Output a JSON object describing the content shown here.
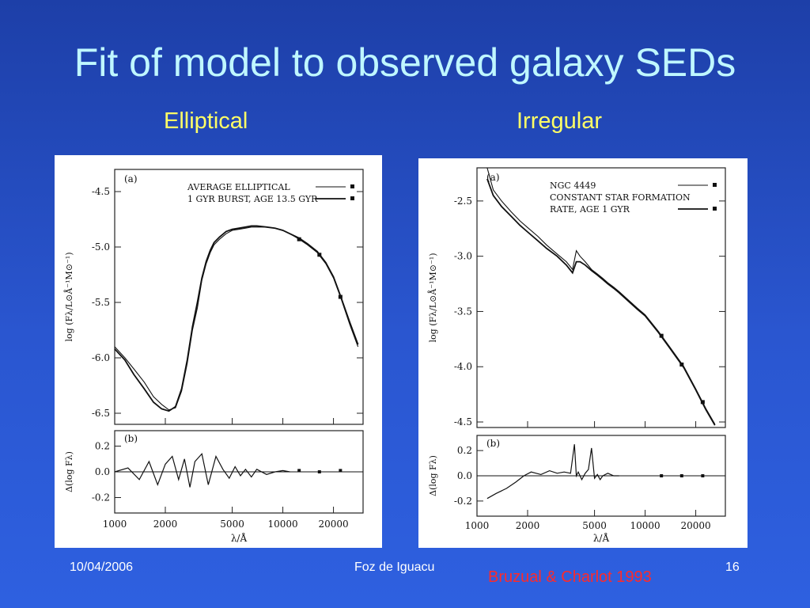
{
  "slide": {
    "title": "Fit of model to observed galaxy SEDs",
    "left_subtitle": "Elliptical",
    "right_subtitle": "Irregular",
    "footer_date": "10/04/2006",
    "footer_venue": "Foz de Iguacu",
    "page_number": "16",
    "citation": "Bruzual & Charlot 1993"
  },
  "colors": {
    "title": "#bff7ff",
    "subtitle": "#ffff66",
    "citation": "#ff2a2a",
    "footer": "#ffffff",
    "background": "#2a56d0"
  },
  "chart_data": [
    {
      "type": "line",
      "panel_label": "(a)",
      "xscale": "log",
      "xlim": [
        1000,
        30000
      ],
      "ylim": [
        -6.6,
        -4.3
      ],
      "xticks": [
        1000,
        2000,
        5000,
        10000,
        20000
      ],
      "xtick_labels": [
        "1000",
        "2000",
        "5000",
        "10000",
        "20000"
      ],
      "yticks": [
        -4.5,
        -5.0,
        -5.5,
        -6.0,
        -6.5
      ],
      "ytick_labels": [
        "-4.5",
        "-5.0",
        "-5.5",
        "-6.0",
        "-6.5"
      ],
      "ylabel": "log (Fλ/L⊙Å⁻¹M⊙⁻¹)",
      "xlabel": "λ/Å",
      "legend": [
        "AVERAGE ELLIPTICAL",
        "1 GYR BURST, AGE 13.5 GYR"
      ],
      "legend_position": "top-right",
      "series": [
        {
          "name": "AVERAGE ELLIPTICAL",
          "x": [
            1000,
            1150,
            1300,
            1500,
            1700,
            1900,
            2100,
            2300,
            2500,
            2700,
            2900,
            3100,
            3300,
            3500,
            3700,
            3900,
            4200,
            4600,
            5000,
            5500,
            6000,
            6500,
            7000,
            8000,
            9000,
            10000,
            11000,
            12500,
            14000,
            16000,
            18000,
            20000,
            22000,
            25000,
            28000
          ],
          "y": [
            -5.9,
            -6.0,
            -6.1,
            -6.22,
            -6.35,
            -6.42,
            -6.47,
            -6.45,
            -6.3,
            -6.05,
            -5.75,
            -5.55,
            -5.3,
            -5.15,
            -5.05,
            -4.98,
            -4.93,
            -4.88,
            -4.85,
            -4.84,
            -4.83,
            -4.82,
            -4.82,
            -4.82,
            -4.83,
            -4.85,
            -4.88,
            -4.93,
            -4.98,
            -5.05,
            -5.15,
            -5.28,
            -5.45,
            -5.7,
            -5.9
          ]
        },
        {
          "name": "1 GYR BURST, AGE 13.5 GYR",
          "x": [
            1000,
            1150,
            1300,
            1500,
            1700,
            1900,
            2100,
            2300,
            2500,
            2700,
            2900,
            3100,
            3300,
            3500,
            3700,
            3900,
            4200,
            4600,
            5000,
            5500,
            6000,
            6500,
            7000,
            8000,
            9000,
            10000,
            11000,
            12500,
            14000,
            16000,
            18000,
            20000,
            22000,
            25000,
            28000
          ],
          "y": [
            -5.92,
            -6.02,
            -6.15,
            -6.28,
            -6.4,
            -6.46,
            -6.48,
            -6.44,
            -6.28,
            -6.02,
            -5.72,
            -5.5,
            -5.28,
            -5.13,
            -5.03,
            -4.96,
            -4.91,
            -4.86,
            -4.84,
            -4.83,
            -4.82,
            -4.81,
            -4.81,
            -4.82,
            -4.83,
            -4.85,
            -4.88,
            -4.92,
            -4.97,
            -5.04,
            -5.14,
            -5.27,
            -5.44,
            -5.68,
            -5.88
          ]
        }
      ],
      "markers": [
        {
          "x": 12500,
          "y": -4.93
        },
        {
          "x": 16500,
          "y": -5.07
        },
        {
          "x": 22000,
          "y": -5.45
        }
      ],
      "residual_panel": {
        "panel_label": "(b)",
        "ylim": [
          -0.32,
          0.32
        ],
        "yticks": [
          0.2,
          0.0,
          -0.2
        ],
        "ytick_labels": [
          "0.2",
          "0.0",
          "-0.2"
        ],
        "ylabel": "Δ(log Fλ)",
        "x": [
          1000,
          1200,
          1400,
          1600,
          1800,
          2000,
          2200,
          2400,
          2600,
          2800,
          3000,
          3300,
          3600,
          4000,
          4400,
          4800,
          5200,
          5600,
          6000,
          6500,
          7000,
          8000,
          9000,
          10000,
          11000
        ],
        "y": [
          0.0,
          0.03,
          -0.06,
          0.08,
          -0.1,
          0.06,
          0.12,
          -0.06,
          0.1,
          -0.12,
          0.08,
          0.14,
          -0.1,
          0.12,
          0.02,
          -0.05,
          0.04,
          -0.03,
          0.02,
          -0.04,
          0.02,
          -0.02,
          0.0,
          0.01,
          0.0
        ],
        "markers": [
          {
            "x": 12500,
            "y": 0.01
          },
          {
            "x": 16500,
            "y": 0.0
          },
          {
            "x": 22000,
            "y": 0.01
          }
        ]
      }
    },
    {
      "type": "line",
      "panel_label": "(a)",
      "xscale": "log",
      "xlim": [
        1000,
        30000
      ],
      "ylim": [
        -4.55,
        -2.2
      ],
      "xticks": [
        1000,
        2000,
        5000,
        10000,
        20000
      ],
      "xtick_labels": [
        "1000",
        "2000",
        "5000",
        "10000",
        "20000"
      ],
      "yticks": [
        -2.5,
        -3.0,
        -3.5,
        -4.0,
        -4.5
      ],
      "ytick_labels": [
        "-2.5",
        "-3.0",
        "-3.5",
        "-4.0",
        "-4.5"
      ],
      "ylabel": "log (Fλ/L⊙Å⁻¹M⊙⁻¹)",
      "xlabel": "λ/Å",
      "legend": [
        "NGC 4449",
        "CONSTANT STAR FORMATION",
        "RATE, AGE 1 GYR"
      ],
      "legend_position": "top-right",
      "series": [
        {
          "name": "NGC 4449",
          "x": [
            1150,
            1250,
            1400,
            1600,
            1800,
            2000,
            2300,
            2600,
            3000,
            3400,
            3700,
            3900,
            4100,
            4400,
            4800,
            5200,
            5600,
            6000,
            6500,
            7000,
            8000,
            9000,
            10000,
            12000,
            14000,
            17000,
            20000,
            23000,
            26000
          ],
          "y": [
            -2.2,
            -2.4,
            -2.5,
            -2.6,
            -2.68,
            -2.74,
            -2.82,
            -2.9,
            -2.98,
            -3.05,
            -3.12,
            -2.95,
            -3.0,
            -3.05,
            -3.12,
            -3.16,
            -3.2,
            -3.24,
            -3.28,
            -3.32,
            -3.4,
            -3.47,
            -3.53,
            -3.68,
            -3.82,
            -4.0,
            -4.2,
            -4.38,
            -4.52
          ]
        },
        {
          "name": "CONSTANT STAR FORMATION RATE, AGE 1 GYR",
          "x": [
            1150,
            1250,
            1400,
            1600,
            1800,
            2000,
            2300,
            2600,
            3000,
            3400,
            3700,
            3900,
            4100,
            4400,
            4800,
            5200,
            5600,
            6000,
            6500,
            7000,
            8000,
            9000,
            10000,
            12000,
            14000,
            17000,
            20000,
            23000,
            26000
          ],
          "y": [
            -2.3,
            -2.45,
            -2.55,
            -2.64,
            -2.72,
            -2.78,
            -2.86,
            -2.93,
            -3.0,
            -3.08,
            -3.15,
            -3.05,
            -3.05,
            -3.08,
            -3.13,
            -3.17,
            -3.21,
            -3.25,
            -3.29,
            -3.33,
            -3.41,
            -3.48,
            -3.54,
            -3.69,
            -3.83,
            -4.01,
            -4.21,
            -4.39,
            -4.53
          ]
        }
      ],
      "markers": [
        {
          "x": 12500,
          "y": -3.72
        },
        {
          "x": 16500,
          "y": -3.98
        },
        {
          "x": 22000,
          "y": -4.32
        }
      ],
      "residual_panel": {
        "panel_label": "(b)",
        "ylim": [
          -0.32,
          0.32
        ],
        "yticks": [
          0.2,
          0.0,
          -0.2
        ],
        "ytick_labels": [
          "0.2",
          "0.0",
          "-0.2"
        ],
        "ylabel": "Δ(log Fλ)",
        "x": [
          1150,
          1300,
          1500,
          1700,
          1900,
          2100,
          2400,
          2700,
          3000,
          3300,
          3600,
          3800,
          3900,
          4000,
          4200,
          4400,
          4600,
          4800,
          5000,
          5200,
          5400,
          5600,
          6000,
          6500,
          7000
        ],
        "y": [
          -0.18,
          -0.14,
          -0.1,
          -0.05,
          0.0,
          0.03,
          0.01,
          0.04,
          0.02,
          0.03,
          0.02,
          0.25,
          0.0,
          0.03,
          -0.03,
          0.02,
          0.05,
          0.22,
          -0.02,
          0.01,
          -0.03,
          0.0,
          0.02,
          0.0,
          0.0
        ],
        "markers": [
          {
            "x": 12500,
            "y": 0.0
          },
          {
            "x": 16500,
            "y": 0.0
          },
          {
            "x": 22000,
            "y": 0.0
          }
        ]
      }
    }
  ]
}
